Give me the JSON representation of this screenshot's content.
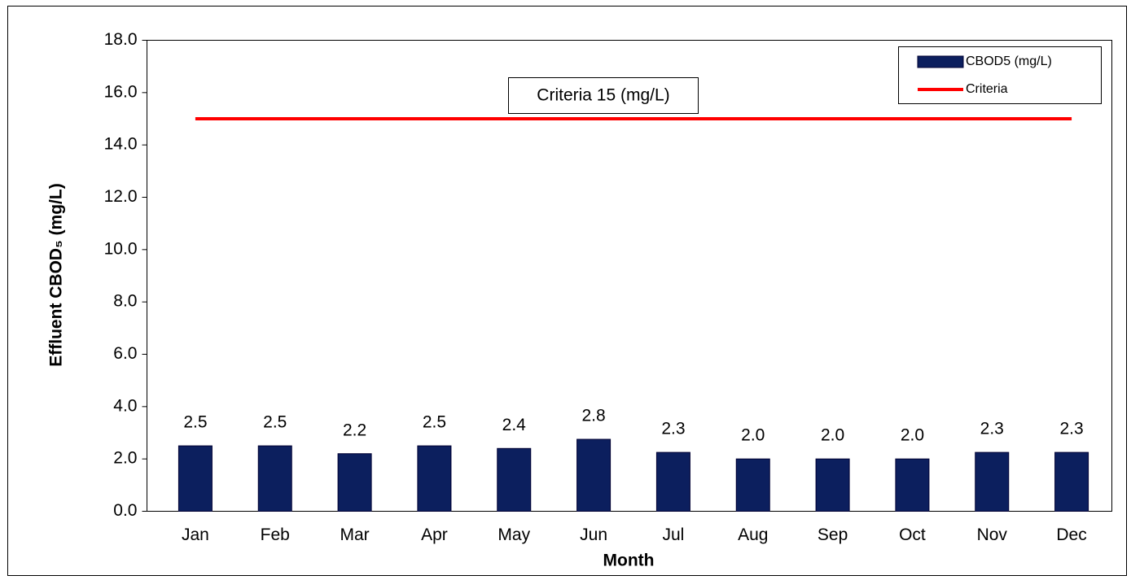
{
  "chart_data": {
    "type": "bar",
    "x_label": "Month",
    "y_label": "Effluent CBOD₅ (mg/L)",
    "annotation": "Criteria 15 (mg/L)",
    "categories": [
      "Jan",
      "Feb",
      "Mar",
      "Apr",
      "May",
      "Jun",
      "Jul",
      "Aug",
      "Sep",
      "Oct",
      "Nov",
      "Dec"
    ],
    "series": [
      {
        "name": "CBOD5 (mg/L)",
        "type": "bar",
        "color": "#0c1f5e",
        "values": [
          2.5,
          2.5,
          2.2,
          2.5,
          2.4,
          2.75,
          2.25,
          2.0,
          2.0,
          2.0,
          2.25,
          2.25
        ],
        "value_labels": [
          "2.5",
          "2.5",
          "2.2",
          "2.5",
          "2.4",
          "2.8",
          "2.3",
          "2.0",
          "2.0",
          "2.0",
          "2.3",
          "2.3"
        ]
      },
      {
        "name": "Criteria",
        "type": "line",
        "color": "#ff0000",
        "values": [
          15,
          15,
          15,
          15,
          15,
          15,
          15,
          15,
          15,
          15,
          15,
          15
        ]
      }
    ],
    "ylim": [
      0,
      18
    ],
    "yticks": [
      {
        "value": 0,
        "label": "0.0"
      },
      {
        "value": 2,
        "label": "2.0"
      },
      {
        "value": 4,
        "label": "4.0"
      },
      {
        "value": 6,
        "label": "6.0"
      },
      {
        "value": 8,
        "label": "8.0"
      },
      {
        "value": 10,
        "label": "10.0"
      },
      {
        "value": 12,
        "label": "12.0"
      },
      {
        "value": 14,
        "label": "14.0"
      },
      {
        "value": 16,
        "label": "16.0"
      },
      {
        "value": 18,
        "label": "18.0"
      }
    ],
    "grid": false,
    "legend": "upper right"
  }
}
